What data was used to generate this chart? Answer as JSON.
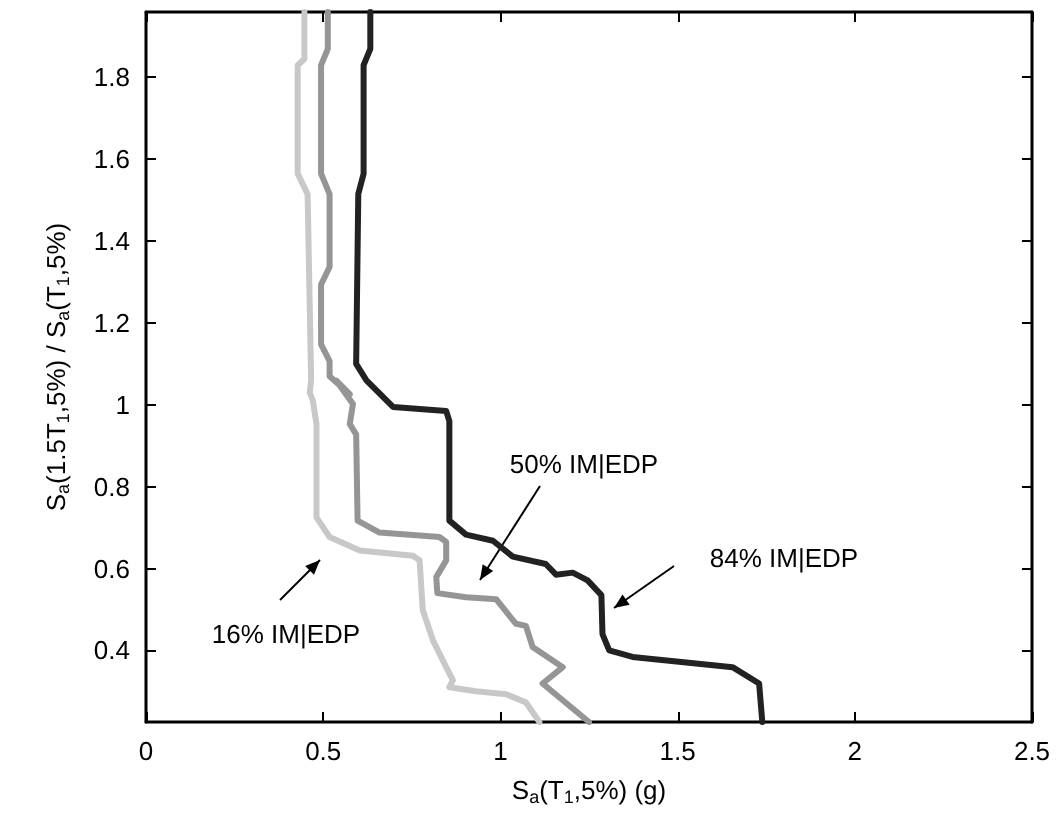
{
  "chart_data": {
    "type": "line",
    "xlabel": "S$_{a}$(T$_{1}$,5%) (g)",
    "ylabel": "S$_{a}$(1.5T$_{1}$,5%) / S$_{a}$(T$_{1}$,5%)",
    "xlim": [
      0,
      2.5
    ],
    "xticks": [
      0,
      0.5,
      1,
      1.5,
      2,
      2.5
    ],
    "ylim": [
      0.225,
      1.96
    ],
    "yticks": [
      0.4,
      0.6,
      0.8,
      1,
      1.2,
      1.4,
      1.6,
      1.8
    ],
    "grid": false,
    "marker": "none",
    "line_style": "solid",
    "series": [
      {
        "color": "#c8c8c8",
        "x": [
          0.447,
          0.447,
          0.428,
          0.428,
          0.456,
          0.466,
          0.462,
          0.471,
          0.481,
          0.481,
          0.518,
          0.603,
          0.753,
          0.772,
          0.781,
          0.81,
          0.847,
          0.866,
          0.856,
          0.931,
          1.016,
          1.072,
          1.11
        ],
        "values": [
          1.96,
          1.845,
          1.83,
          1.565,
          1.515,
          1.06,
          1.03,
          1.01,
          0.953,
          0.725,
          0.677,
          0.644,
          0.631,
          0.62,
          0.498,
          0.424,
          0.359,
          0.327,
          0.31,
          0.3,
          0.293,
          0.273,
          0.225
        ]
      },
      {
        "color": "#959595",
        "x": [
          0.513,
          0.513,
          0.494,
          0.494,
          0.518,
          0.518,
          0.494,
          0.494,
          0.518,
          0.518,
          0.575,
          0.537,
          0.584,
          0.575,
          0.593,
          0.597,
          0.659,
          0.828,
          0.847,
          0.847,
          0.819,
          0.822,
          0.903,
          0.988,
          1.044,
          1.072,
          1.091,
          1.176,
          1.119,
          1.25
        ],
        "values": [
          1.96,
          1.87,
          1.83,
          1.565,
          1.515,
          1.337,
          1.294,
          1.148,
          1.107,
          1.07,
          1.026,
          1.059,
          1.002,
          0.953,
          0.928,
          0.717,
          0.688,
          0.677,
          0.665,
          0.62,
          0.579,
          0.54,
          0.53,
          0.525,
          0.465,
          0.46,
          0.408,
          0.359,
          0.319,
          0.225
        ]
      },
      {
        "color": "#222222",
        "x": [
          0.633,
          0.633,
          0.614,
          0.614,
          0.599,
          0.593,
          0.622,
          0.697,
          0.847,
          0.856,
          0.856,
          0.903,
          0.979,
          1.035,
          1.128,
          1.157,
          1.204,
          1.246,
          1.285,
          1.288,
          1.307,
          1.373,
          1.655,
          1.73,
          1.739
        ],
        "values": [
          1.96,
          1.87,
          1.83,
          1.565,
          1.515,
          1.1,
          1.06,
          0.995,
          0.985,
          0.96,
          0.717,
          0.683,
          0.668,
          0.629,
          0.611,
          0.585,
          0.59,
          0.571,
          0.535,
          0.44,
          0.4,
          0.384,
          0.359,
          0.319,
          0.225
        ]
      }
    ],
    "annotations": [
      "16% IM|EDP",
      "50% IM|EDP",
      "84% IM|EDP"
    ]
  }
}
